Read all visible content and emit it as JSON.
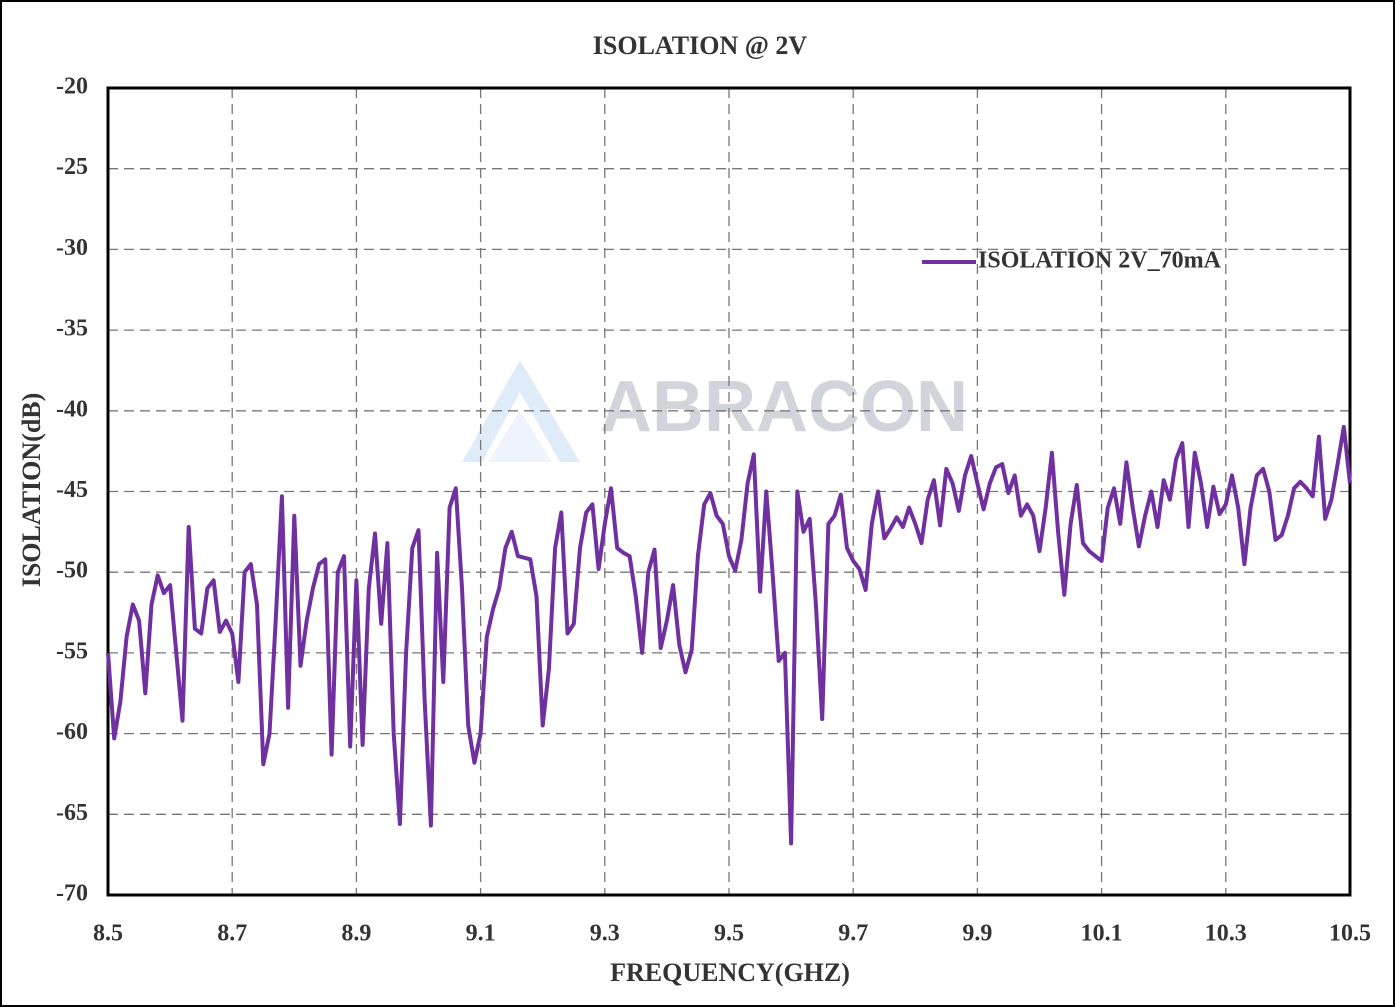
{
  "chart_data": {
    "type": "line",
    "title": "ISOLATION @ 2V",
    "xlabel": "FREQUENCY(GHZ)",
    "ylabel": "ISOLATION(dB)",
    "watermark": "ABRACON",
    "xlim": [
      8.5,
      10.5
    ],
    "ylim": [
      -70,
      -20
    ],
    "xticks": [
      8.5,
      8.7,
      8.9,
      9.1,
      9.3,
      9.5,
      9.7,
      9.9,
      10.1,
      10.3,
      10.5
    ],
    "yticks": [
      -70,
      -65,
      -60,
      -55,
      -50,
      -45,
      -40,
      -35,
      -30,
      -25,
      -20
    ],
    "grid": true,
    "legend": "upper right",
    "x": [
      8.5,
      8.51,
      8.52,
      8.53,
      8.54,
      8.55,
      8.56,
      8.57,
      8.58,
      8.59,
      8.6,
      8.61,
      8.62,
      8.63,
      8.64,
      8.65,
      8.66,
      8.67,
      8.68,
      8.69,
      8.7,
      8.71,
      8.72,
      8.73,
      8.74,
      8.75,
      8.76,
      8.77,
      8.78,
      8.79,
      8.8,
      8.81,
      8.82,
      8.83,
      8.84,
      8.85,
      8.86,
      8.87,
      8.88,
      8.89,
      8.9,
      8.91,
      8.92,
      8.93,
      8.94,
      8.95,
      8.96,
      8.97,
      8.98,
      8.99,
      9.0,
      9.01,
      9.02,
      9.03,
      9.04,
      9.05,
      9.06,
      9.07,
      9.08,
      9.09,
      9.1,
      9.11,
      9.12,
      9.13,
      9.14,
      9.15,
      9.16,
      9.17,
      9.18,
      9.19,
      9.2,
      9.21,
      9.22,
      9.23,
      9.24,
      9.25,
      9.26,
      9.27,
      9.28,
      9.29,
      9.3,
      9.31,
      9.32,
      9.33,
      9.34,
      9.35,
      9.36,
      9.37,
      9.38,
      9.39,
      9.4,
      9.41,
      9.42,
      9.43,
      9.44,
      9.45,
      9.46,
      9.47,
      9.48,
      9.49,
      9.5,
      9.51,
      9.52,
      9.53,
      9.54,
      9.55,
      9.56,
      9.57,
      9.58,
      9.59,
      9.6,
      9.61,
      9.62,
      9.63,
      9.64,
      9.65,
      9.66,
      9.67,
      9.68,
      9.69,
      9.7,
      9.71,
      9.72,
      9.73,
      9.74,
      9.75,
      9.76,
      9.77,
      9.78,
      9.79,
      9.8,
      9.81,
      9.82,
      9.83,
      9.84,
      9.85,
      9.86,
      9.87,
      9.88,
      9.89,
      9.9,
      9.91,
      9.92,
      9.93,
      9.94,
      9.95,
      9.96,
      9.97,
      9.98,
      9.99,
      10.0,
      10.01,
      10.02,
      10.03,
      10.04,
      10.05,
      10.06,
      10.07,
      10.08,
      10.09,
      10.1,
      10.11,
      10.12,
      10.13,
      10.14,
      10.15,
      10.16,
      10.17,
      10.18,
      10.19,
      10.2,
      10.21,
      10.22,
      10.23,
      10.24,
      10.25,
      10.26,
      10.27,
      10.28,
      10.29,
      10.3,
      10.31,
      10.32,
      10.33,
      10.34,
      10.35,
      10.36,
      10.37,
      10.38,
      10.39,
      10.4,
      10.41,
      10.42,
      10.43,
      10.44,
      10.45,
      10.46,
      10.47,
      10.48,
      10.49,
      10.5
    ],
    "series": [
      {
        "name": "ISOLATION 2V_70mA",
        "color": "#7030a0",
        "values": [
          -55,
          -60.3,
          -58,
          -54,
          -52,
          -53,
          -57.5,
          -52,
          -50.2,
          -51.3,
          -50.8,
          -55,
          -59.2,
          -47.2,
          -53.5,
          -53.8,
          -51,
          -50.5,
          -53.7,
          -53,
          -53.8,
          -56.8,
          -50,
          -49.5,
          -52,
          -61.9,
          -60,
          -53,
          -45.3,
          -58.4,
          -46.5,
          -55.8,
          -53,
          -51,
          -49.5,
          -49.2,
          -61.3,
          -50,
          -49,
          -60.8,
          -50.5,
          -60.7,
          -51,
          -47.6,
          -53.2,
          -48.2,
          -60,
          -65.6,
          -55,
          -48.5,
          -47.4,
          -58,
          -65.7,
          -48.8,
          -56.8,
          -46,
          -44.8,
          -51,
          -59.5,
          -61.8,
          -60,
          -54,
          -52.3,
          -51,
          -48.5,
          -47.5,
          -49,
          -49.1,
          -49.2,
          -51.5,
          -59.5,
          -56,
          -48.5,
          -46.3,
          -53.8,
          -53.2,
          -48.5,
          -46.3,
          -45.8,
          -49.8,
          -47,
          -44.8,
          -48.5,
          -48.8,
          -49,
          -51.5,
          -55,
          -50,
          -48.6,
          -54.7,
          -53,
          -50.8,
          -54.5,
          -56.2,
          -54.8,
          -49,
          -45.8,
          -45.1,
          -46.5,
          -47,
          -49,
          -49.9,
          -48,
          -44.5,
          -42.7,
          -51.2,
          -45,
          -50,
          -55.5,
          -55,
          -66.8,
          -45,
          -47.5,
          -46.7,
          -52,
          -59.1,
          -47,
          -46.5,
          -45.2,
          -48.5,
          -49.3,
          -49.8,
          -51.1,
          -47,
          -45,
          -47.9,
          -47.3,
          -46.6,
          -47.2,
          -46,
          -47,
          -48.2,
          -45.5,
          -44.3,
          -47.1,
          -43.6,
          -44.5,
          -46.2,
          -44,
          -42.8,
          -44.5,
          -46.1,
          -44.5,
          -43.5,
          -43.3,
          -45.1,
          -44,
          -46.5,
          -45.8,
          -46.5,
          -48.7,
          -46,
          -42.6,
          -47.5,
          -51.4,
          -47,
          -44.6,
          -48.2,
          -48.7,
          -49,
          -49.3,
          -46,
          -44.8,
          -47,
          -43.2,
          -46,
          -48.4,
          -46.5,
          -45,
          -47.2,
          -44.3,
          -45.5,
          -43,
          -42,
          -47.2,
          -42.6,
          -44.5,
          -47.2,
          -44.7,
          -46.4,
          -45.8,
          -44,
          -46,
          -49.5,
          -46,
          -44,
          -43.6,
          -45,
          -48,
          -47.7,
          -46.5,
          -44.8,
          -44.4,
          -44.8,
          -45.3,
          -41.6,
          -46.7,
          -45.5,
          -43.3,
          -41,
          -44.5
        ]
      }
    ]
  }
}
